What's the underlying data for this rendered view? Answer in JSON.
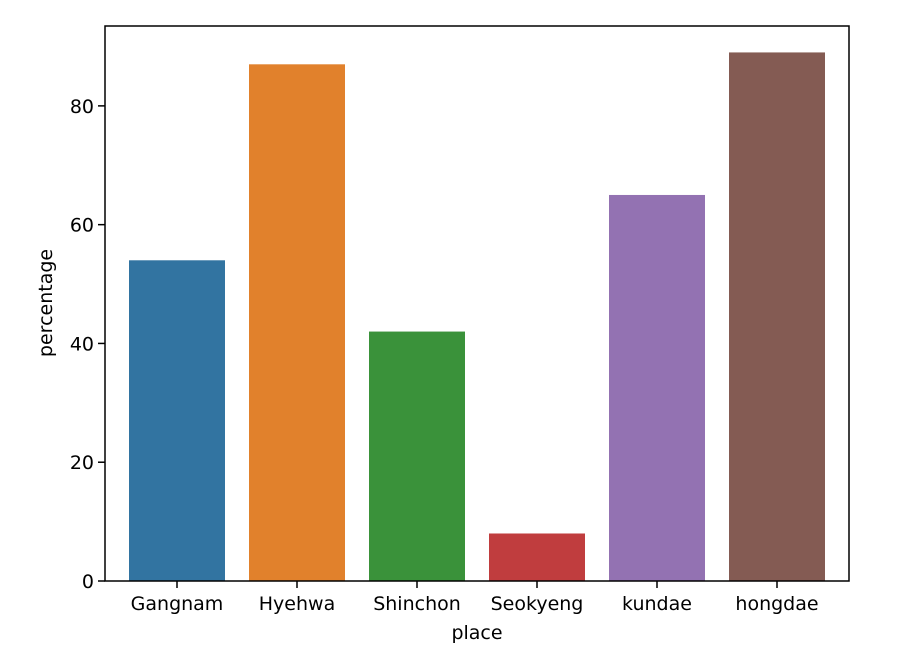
{
  "chart_data": {
    "type": "bar",
    "title": "",
    "xlabel": "place",
    "ylabel": "percentage",
    "categories": [
      "Gangnam",
      "Hyehwa",
      "Shinchon",
      "Seokyeng",
      "kundae",
      "hongdae"
    ],
    "values": [
      54,
      87,
      42,
      8,
      65,
      89
    ],
    "colors": [
      "#3274a1",
      "#e1812c",
      "#3a923a",
      "#c03d3e",
      "#9372b2",
      "#845b53"
    ],
    "ylim": [
      0,
      93.45
    ],
    "yticks": [
      0,
      20,
      40,
      60,
      80
    ],
    "grid": false,
    "legend": "none"
  }
}
